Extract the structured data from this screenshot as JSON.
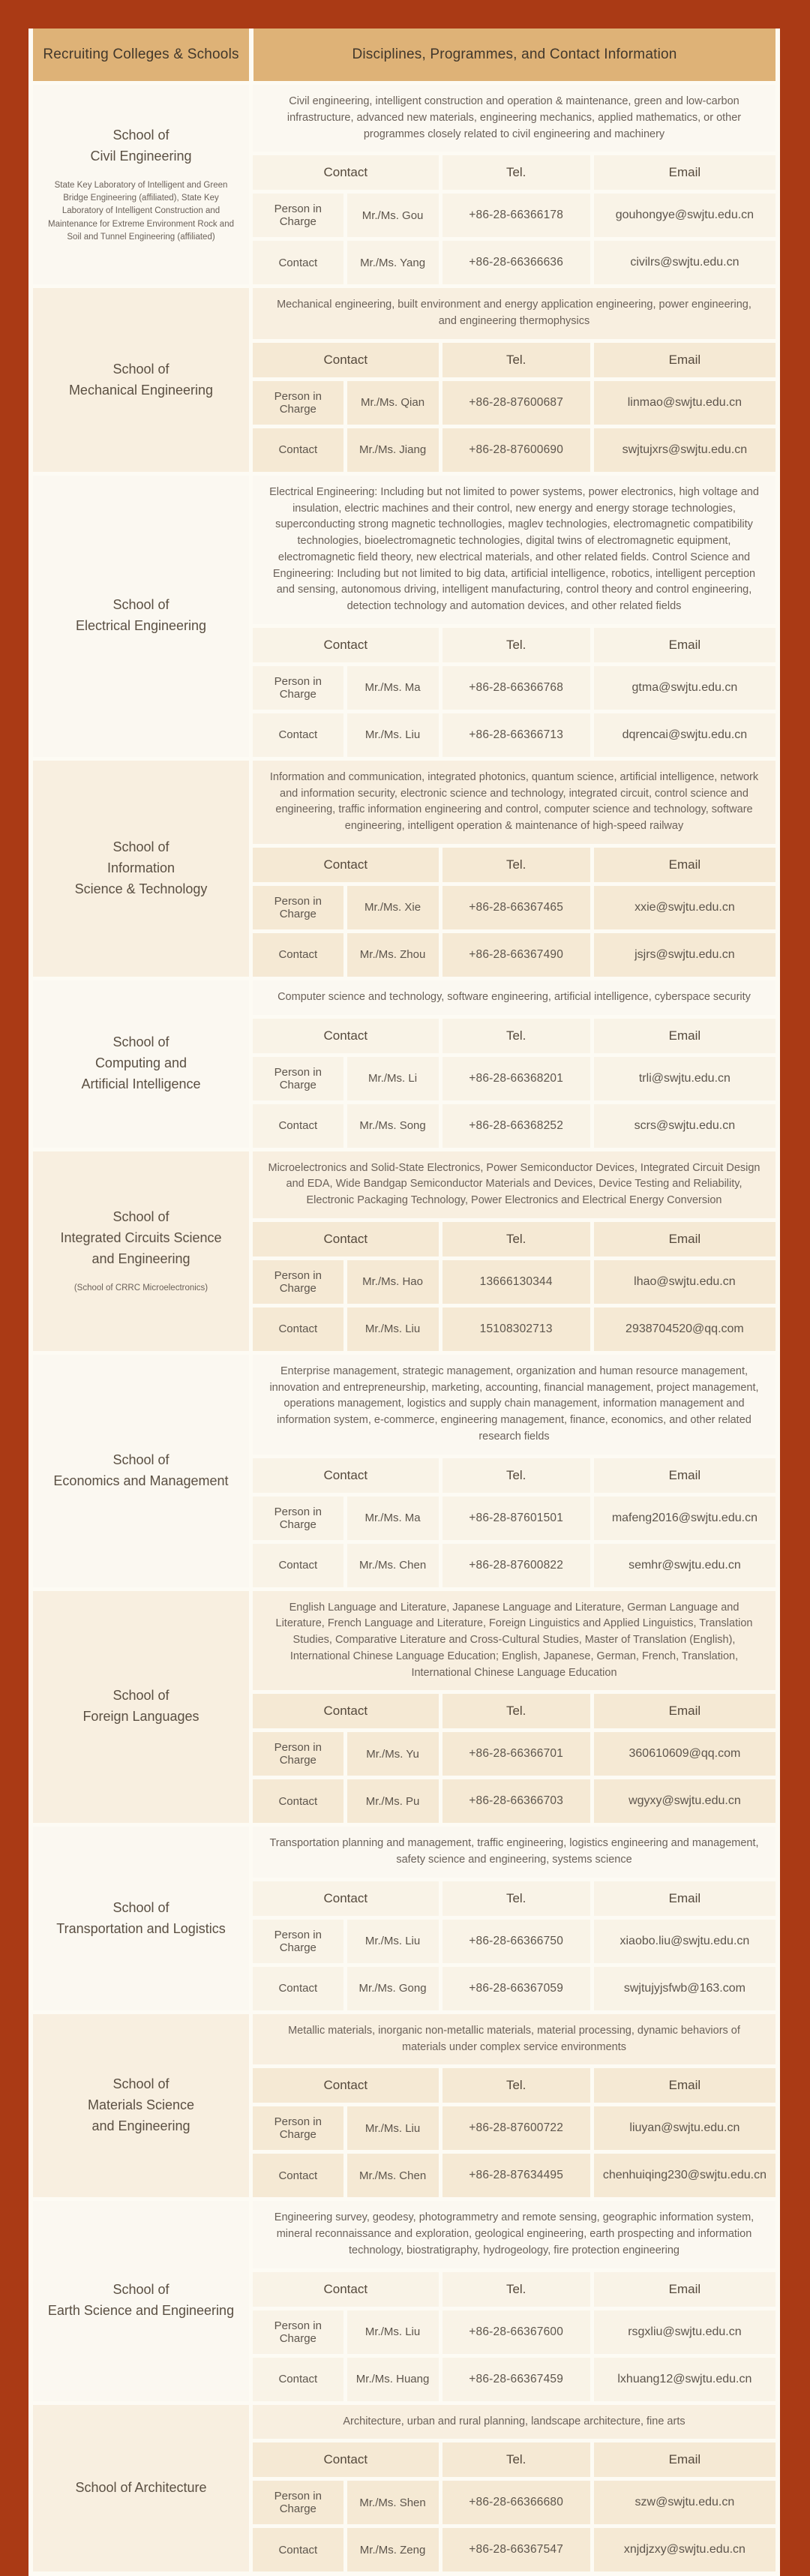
{
  "colors": {
    "page_background": "#aa3a15",
    "header_background": "#deb277",
    "section_light": "#fbf8f1",
    "section_beige": "#f8efe0"
  },
  "header": {
    "col1": "Recruiting Colleges & Schools",
    "col2": "Disciplines, Programmes, and Contact Information"
  },
  "table_headers": {
    "contact": "Contact",
    "tel": "Tel.",
    "email": "Email"
  },
  "row_labels": {
    "person_in_charge": "Person in Charge",
    "contact": "Contact"
  },
  "sections": [
    {
      "school": "School of\nCivil Engineering",
      "note": "State Key Laboratory of Intelligent and Green Bridge Engineering (affiliated), State Key Laboratory of Intelligent Construction and Maintenance for Extreme Environment Rock and Soil and Tunnel Engineering (affiliated)",
      "description": "Civil engineering, intelligent construction and operation & maintenance, green and low-carbon infrastructure, advanced new materials, engineering mechanics, applied mathematics, or other programmes closely related to civil engineering and machinery",
      "person_in_charge": {
        "name": "Mr./Ms. Gou",
        "tel": "+86-28-66366178",
        "email": "gouhongye@swjtu.edu.cn"
      },
      "contact": {
        "name": "Mr./Ms. Yang",
        "tel": "+86-28-66366636",
        "email": "civilrs@swjtu.edu.cn"
      }
    },
    {
      "school": "School of\nMechanical Engineering",
      "description": "Mechanical engineering, built environment and energy application engineering, power engineering, and engineering thermophysics",
      "person_in_charge": {
        "name": "Mr./Ms. Qian",
        "tel": "+86-28-87600687",
        "email": "linmao@swjtu.edu.cn"
      },
      "contact": {
        "name": "Mr./Ms. Jiang",
        "tel": "+86-28-87600690",
        "email": "swjtujxrs@swjtu.edu.cn"
      }
    },
    {
      "school": "School of\nElectrical Engineering",
      "description": "Electrical Engineering: Including but not limited to power systems, power electronics, high voltage and insulation, electric machines and their control, new energy and energy storage technologies, superconducting strong magnetic technollogies, maglev technologies, electromagnetic compatibility technologies, bioelectromagnetic technologies, digital twins of electromagnetic equipment, electromagnetic field theory, new electrical materials, and other related fields. Control Science and Engineering: Including but not limited to big data, artificial intelligence, robotics, intelligent perception and sensing, autonomous driving, intelligent manufacturing, control theory and control engineering, detection technology and automation devices, and other related fields",
      "person_in_charge": {
        "name": "Mr./Ms. Ma",
        "tel": "+86-28-66366768",
        "email": "gtma@swjtu.edu.cn"
      },
      "contact": {
        "name": "Mr./Ms. Liu",
        "tel": "+86-28-66366713",
        "email": "dqrencai@swjtu.edu.cn"
      }
    },
    {
      "school": "School of\nInformation\nScience & Technology",
      "description": "Information and communication, integrated photonics, quantum science, artificial intelligence, network and information security, electronic science and technology, integrated circuit, control science and engineering, traffic information engineering and control, computer science and technology, software engineering, intelligent operation & maintenance of high-speed railway",
      "person_in_charge": {
        "name": "Mr./Ms. Xie",
        "tel": "+86-28-66367465",
        "email": "xxie@swjtu.edu.cn"
      },
      "contact": {
        "name": "Mr./Ms. Zhou",
        "tel": "+86-28-66367490",
        "email": "jsjrs@swjtu.edu.cn"
      }
    },
    {
      "school": "School of\nComputing and\nArtificial Intelligence",
      "description": "Computer science and technology, software engineering, artificial intelligence, cyberspace security",
      "person_in_charge": {
        "name": "Mr./Ms. Li",
        "tel": "+86-28-66368201",
        "email": "trli@swjtu.edu.cn"
      },
      "contact": {
        "name": "Mr./Ms. Song",
        "tel": "+86-28-66368252",
        "email": "scrs@swjtu.edu.cn"
      }
    },
    {
      "school": "School of\nIntegrated Circuits Science\nand Engineering",
      "note": "(School of CRRC Microelectronics)",
      "description": "Microelectronics and Solid-State Electronics, Power Semiconductor Devices, Integrated Circuit Design and EDA, Wide Bandgap Semiconductor Materials and Devices, Device Testing and Reliability, Electronic Packaging Technology, Power Electronics and Electrical Energy Conversion",
      "person_in_charge": {
        "name": "Mr./Ms. Hao",
        "tel": "13666130344",
        "email": "lhao@swjtu.edu.cn"
      },
      "contact": {
        "name": "Mr./Ms. Liu",
        "tel": "15108302713",
        "email": "2938704520@qq.com"
      }
    },
    {
      "school": "School of\nEconomics and Management",
      "description": "Enterprise management, strategic management, organization and human resource management, innovation and entrepreneurship, marketing, accounting, financial management, project management, operations management, logistics and supply chain management, information management and information system, e-commerce, engineering management, finance, economics, and other related research fields",
      "person_in_charge": {
        "name": "Mr./Ms. Ma",
        "tel": "+86-28-87601501",
        "email": "mafeng2016@swjtu.edu.cn"
      },
      "contact": {
        "name": "Mr./Ms. Chen",
        "tel": "+86-28-87600822",
        "email": "semhr@swjtu.edu.cn"
      }
    },
    {
      "school": "School of\nForeign Languages",
      "description": "English Language and Literature, Japanese Language and Literature, German Language and Literature, French Language and Literature, Foreign Linguistics and Applied Linguistics, Translation Studies, Comparative Literature and Cross-Cultural Studies, Master of Translation (English), International Chinese Language Education; English, Japanese, German, French, Translation, International Chinese Language Education",
      "person_in_charge": {
        "name": "Mr./Ms. Yu",
        "tel": "+86-28-66366701",
        "email": "360610609@qq.com"
      },
      "contact": {
        "name": "Mr./Ms. Pu",
        "tel": "+86-28-66366703",
        "email": "wgyxy@swjtu.edu.cn"
      }
    },
    {
      "school": "School of\nTransportation and Logistics",
      "description": "Transportation planning and management, traffic engineering, logistics engineering and management, safety science and engineering, systems science",
      "person_in_charge": {
        "name": "Mr./Ms. Liu",
        "tel": "+86-28-66366750",
        "email": "xiaobo.liu@swjtu.edu.cn"
      },
      "contact": {
        "name": "Mr./Ms. Gong",
        "tel": "+86-28-66367059",
        "email": "swjtujyjsfwb@163.com"
      }
    },
    {
      "school": "School of\nMaterials Science\nand Engineering",
      "description": "Metallic materials, inorganic non-metallic materials, material processing, dynamic behaviors of materials under complex service environments",
      "person_in_charge": {
        "name": "Mr./Ms. Liu",
        "tel": "+86-28-87600722",
        "email": "liuyan@swjtu.edu.cn"
      },
      "contact": {
        "name": "Mr./Ms. Chen",
        "tel": "+86-28-87634495",
        "email": "chenhuiqing230@swjtu.edu.cn"
      }
    },
    {
      "school": "School of\nEarth Science and Engineering",
      "description": "Engineering survey, geodesy, photogrammetry and remote sensing, geographic information system, mineral reconnaissance and exploration, geological engineering, earth prospecting and information technology, biostratigraphy, hydrogeology, fire protection engineering",
      "person_in_charge": {
        "name": "Mr./Ms. Liu",
        "tel": "+86-28-66367600",
        "email": "rsgxliu@swjtu.edu.cn"
      },
      "contact": {
        "name": "Mr./Ms. Huang",
        "tel": "+86-28-66367459",
        "email": "lxhuang12@swjtu.edu.cn"
      }
    },
    {
      "school": "School of Architecture",
      "description": "Architecture, urban and rural planning, landscape architecture, fine arts",
      "person_in_charge": {
        "name": "Mr./Ms. Shen",
        "tel": "+86-28-66366680",
        "email": "szw@swjtu.edu.cn"
      },
      "contact": {
        "name": "Mr./Ms. Zeng",
        "tel": "+86-28-66367547",
        "email": "xnjdjzxy@swjtu.edu.cn"
      }
    }
  ]
}
